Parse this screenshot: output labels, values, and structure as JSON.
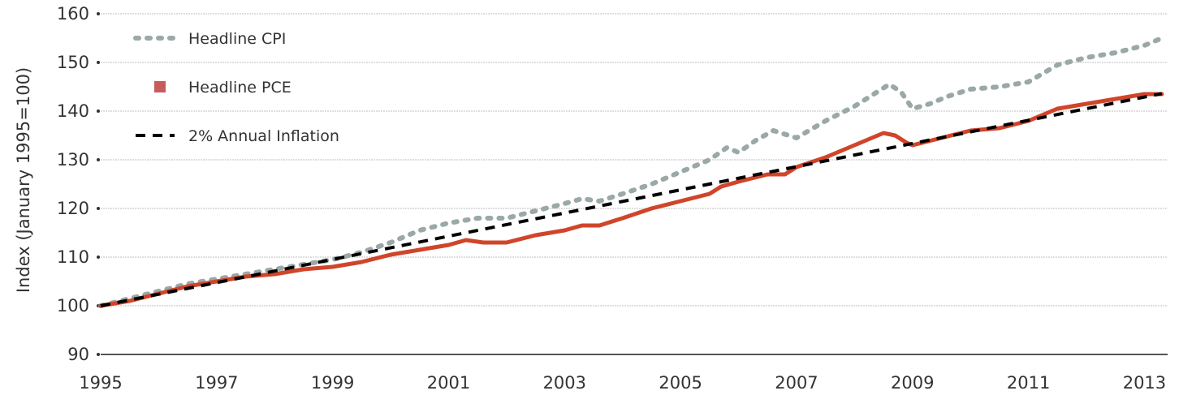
{
  "chart_data": {
    "type": "line",
    "title": "",
    "xlabel": "",
    "ylabel": "Index (January 1995=100)",
    "xlim": [
      1995.0,
      2013.4
    ],
    "ylim": [
      90,
      160
    ],
    "x_ticks": [
      1995,
      1997,
      1999,
      2001,
      2003,
      2005,
      2007,
      2009,
      2011,
      2013
    ],
    "x_tick_labels": [
      "1995",
      "1997",
      "1999",
      "2001",
      "2003",
      "2005",
      "2007",
      "2009",
      "2011",
      "2013"
    ],
    "y_ticks": [
      90,
      100,
      110,
      120,
      130,
      140,
      150,
      160
    ],
    "y_tick_labels": [
      "90",
      "100",
      "110",
      "120",
      "130",
      "140",
      "150",
      "160"
    ],
    "grid": "horizontal",
    "legend_position": "top-left",
    "series": [
      {
        "name": "Headline CPI",
        "color": "#9aa8a8",
        "style": "dotted",
        "x": [
          1995.0,
          1995.5,
          1996.0,
          1996.5,
          1997.0,
          1997.5,
          1998.0,
          1998.5,
          1999.0,
          1999.5,
          2000.0,
          2000.5,
          2001.0,
          2001.5,
          2002.0,
          2002.5,
          2003.0,
          2003.3,
          2003.6,
          2004.0,
          2004.5,
          2005.0,
          2005.5,
          2005.8,
          2006.0,
          2006.3,
          2006.6,
          2007.0,
          2007.5,
          2008.0,
          2008.4,
          2008.6,
          2008.8,
          2009.0,
          2009.3,
          2009.6,
          2010.0,
          2010.5,
          2011.0,
          2011.5,
          2012.0,
          2012.5,
          2013.0,
          2013.3
        ],
        "y": [
          100,
          101.5,
          103,
          104.5,
          105.5,
          106.5,
          107.5,
          108.5,
          109.5,
          111,
          113,
          115.5,
          117,
          118,
          118,
          119.5,
          121,
          122,
          121.5,
          123,
          125,
          127.5,
          130,
          132.5,
          131.5,
          134,
          136,
          134.5,
          138,
          141,
          144,
          145.5,
          144,
          140.5,
          141.5,
          143,
          144.5,
          145,
          146,
          149.5,
          151,
          152,
          153.5,
          155
        ]
      },
      {
        "name": "Headline PCE",
        "color": "#d0452a",
        "style": "solid",
        "x": [
          1995.0,
          1995.5,
          1996.0,
          1996.5,
          1997.0,
          1997.5,
          1998.0,
          1998.5,
          1999.0,
          1999.5,
          2000.0,
          2000.5,
          2001.0,
          2001.3,
          2001.6,
          2002.0,
          2002.5,
          2003.0,
          2003.3,
          2003.6,
          2004.0,
          2004.5,
          2005.0,
          2005.5,
          2005.7,
          2006.0,
          2006.5,
          2006.8,
          2007.0,
          2007.5,
          2008.0,
          2008.3,
          2008.5,
          2008.7,
          2008.9,
          2009.0,
          2009.5,
          2010.0,
          2010.5,
          2011.0,
          2011.5,
          2012.0,
          2012.5,
          2013.0,
          2013.3
        ],
        "y": [
          100,
          101,
          102.5,
          104,
          105,
          106,
          106.5,
          107.5,
          108,
          109,
          110.5,
          111.5,
          112.5,
          113.5,
          113,
          113,
          114.5,
          115.5,
          116.5,
          116.5,
          118,
          120,
          121.5,
          123,
          124.5,
          125.5,
          127,
          127,
          128.5,
          130.5,
          133,
          134.5,
          135.5,
          135,
          133.5,
          133,
          134.5,
          136,
          136.5,
          138,
          140.5,
          141.5,
          142.5,
          143.5,
          143.5
        ]
      },
      {
        "name": "2% Annual Inflation",
        "color": "#000000",
        "style": "dashed",
        "x": [
          1995.0,
          2013.3
        ],
        "y": [
          100,
          143.6
        ]
      }
    ]
  }
}
